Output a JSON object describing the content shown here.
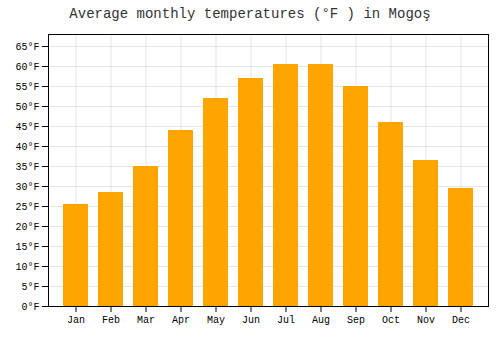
{
  "chart_data": {
    "type": "bar",
    "title": "Average monthly temperatures (°F ) in Mogoş",
    "categories": [
      "Jan",
      "Feb",
      "Mar",
      "Apr",
      "May",
      "Jun",
      "Jul",
      "Aug",
      "Sep",
      "Oct",
      "Nov",
      "Dec"
    ],
    "values": [
      25.5,
      28.5,
      35,
      44,
      52,
      57,
      60.5,
      60.5,
      55,
      46,
      36.5,
      29.5
    ],
    "color": "#FFA500",
    "ylim": [
      0,
      68
    ],
    "yticks": [
      {
        "value": 0,
        "label": "0°F"
      },
      {
        "value": 5,
        "label": "5°F"
      },
      {
        "value": 10,
        "label": "10°F"
      },
      {
        "value": 15,
        "label": "15°F"
      },
      {
        "value": 20,
        "label": "20°F"
      },
      {
        "value": 25,
        "label": "25°F"
      },
      {
        "value": 30,
        "label": "30°F"
      },
      {
        "value": 35,
        "label": "35°F"
      },
      {
        "value": 40,
        "label": "40°F"
      },
      {
        "value": 45,
        "label": "45°F"
      },
      {
        "value": 50,
        "label": "50°F"
      },
      {
        "value": 55,
        "label": "55°F"
      },
      {
        "value": 60,
        "label": "60°F"
      },
      {
        "value": 65,
        "label": "65°F"
      }
    ],
    "grid": true
  }
}
